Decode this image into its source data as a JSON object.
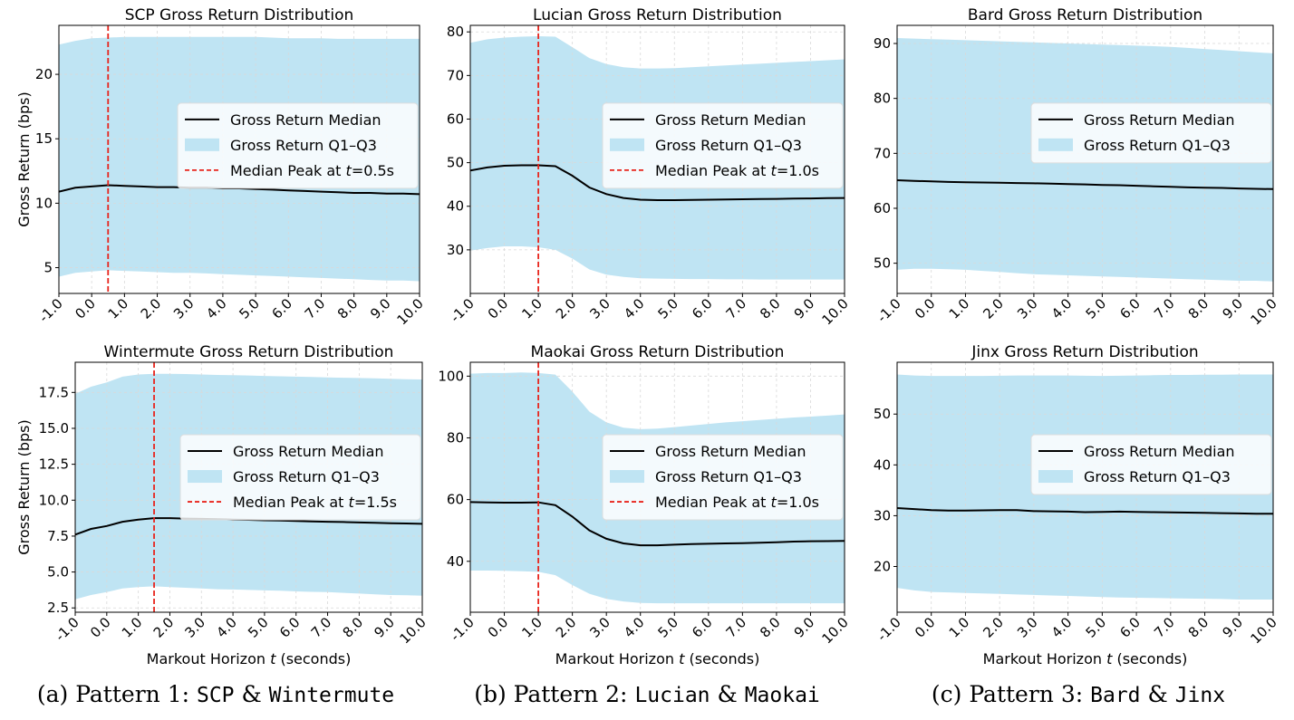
{
  "chart_data": [
    {
      "type": "line",
      "title": "SCP Gross Return Distribution",
      "xlabel": "",
      "ylabel": "Gross Return (bps)",
      "x": [
        -1.0,
        -0.5,
        0.0,
        0.5,
        1.0,
        1.5,
        2.0,
        2.5,
        3.0,
        3.5,
        4.0,
        4.5,
        5.0,
        5.5,
        6.0,
        6.5,
        7.0,
        7.5,
        8.0,
        8.5,
        9.0,
        9.5,
        10.0
      ],
      "xticks": [
        "-1.0",
        "0.0",
        "1.0",
        "2.0",
        "3.0",
        "4.0",
        "5.0",
        "6.0",
        "7.0",
        "8.0",
        "9.0",
        "10.0"
      ],
      "yticks": [
        "5",
        "10",
        "15",
        "20"
      ],
      "xlim": [
        -1.0,
        10.0
      ],
      "ylim": [
        3.0,
        23.8
      ],
      "series": [
        {
          "name": "Gross Return Median",
          "kind": "line",
          "values": [
            10.9,
            11.2,
            11.3,
            11.4,
            11.35,
            11.3,
            11.25,
            11.25,
            11.2,
            11.2,
            11.15,
            11.15,
            11.1,
            11.05,
            11.0,
            10.95,
            10.9,
            10.85,
            10.8,
            10.8,
            10.75,
            10.75,
            10.7
          ]
        },
        {
          "name": "Gross Return Q1–Q3",
          "kind": "band",
          "lower": [
            4.3,
            4.6,
            4.7,
            4.8,
            4.75,
            4.7,
            4.65,
            4.6,
            4.6,
            4.55,
            4.5,
            4.45,
            4.4,
            4.35,
            4.3,
            4.25,
            4.2,
            4.15,
            4.1,
            4.05,
            4.0,
            4.0,
            3.95
          ],
          "upper": [
            22.3,
            22.6,
            22.8,
            22.85,
            22.9,
            22.9,
            22.9,
            22.9,
            22.9,
            22.9,
            22.9,
            22.9,
            22.9,
            22.85,
            22.8,
            22.8,
            22.8,
            22.75,
            22.75,
            22.75,
            22.75,
            22.75,
            22.75
          ]
        },
        {
          "name": "Median Peak at t=0.5s",
          "kind": "vline",
          "x": 0.5
        }
      ],
      "legend": {
        "placement": "center-right",
        "entries": [
          "Gross Return Median",
          "Gross Return Q1–Q3",
          "Median Peak at t=0.5s"
        ]
      },
      "grid": true
    },
    {
      "type": "line",
      "title": "Lucian Gross Return Distribution",
      "xlabel": "",
      "ylabel": "",
      "x": [
        -1.0,
        -0.5,
        0.0,
        0.5,
        1.0,
        1.5,
        2.0,
        2.5,
        3.0,
        3.5,
        4.0,
        4.5,
        5.0,
        5.5,
        6.0,
        6.5,
        7.0,
        7.5,
        8.0,
        8.5,
        9.0,
        9.5,
        10.0
      ],
      "xticks": [
        "-1.0",
        "0.0",
        "1.0",
        "2.0",
        "3.0",
        "4.0",
        "5.0",
        "6.0",
        "7.0",
        "8.0",
        "9.0",
        "10.0"
      ],
      "yticks": [
        "30",
        "40",
        "50",
        "60",
        "70",
        "80"
      ],
      "xlim": [
        -1.0,
        10.0
      ],
      "ylim": [
        20.0,
        81.5
      ],
      "series": [
        {
          "name": "Gross Return Median",
          "kind": "line",
          "values": [
            48.2,
            48.9,
            49.3,
            49.4,
            49.4,
            49.2,
            47.0,
            44.3,
            42.8,
            41.9,
            41.5,
            41.4,
            41.4,
            41.45,
            41.5,
            41.55,
            41.6,
            41.65,
            41.7,
            41.75,
            41.8,
            41.85,
            41.9
          ]
        },
        {
          "name": "Gross Return Q1–Q3",
          "kind": "band",
          "lower": [
            29.8,
            30.4,
            30.8,
            30.8,
            30.6,
            30.0,
            28.0,
            25.5,
            24.3,
            23.8,
            23.5,
            23.4,
            23.35,
            23.3,
            23.3,
            23.25,
            23.25,
            23.2,
            23.2,
            23.2,
            23.2,
            23.2,
            23.2
          ],
          "upper": [
            77.5,
            78.3,
            78.7,
            78.9,
            79.0,
            78.9,
            76.5,
            74.0,
            72.6,
            71.9,
            71.6,
            71.6,
            71.7,
            71.9,
            72.1,
            72.3,
            72.5,
            72.7,
            72.9,
            73.1,
            73.3,
            73.5,
            73.7
          ]
        },
        {
          "name": "Median Peak at t=1.0s",
          "kind": "vline",
          "x": 1.0
        }
      ],
      "legend": {
        "placement": "center-right",
        "entries": [
          "Gross Return Median",
          "Gross Return Q1–Q3",
          "Median Peak at t=1.0s"
        ]
      },
      "grid": true
    },
    {
      "type": "line",
      "title": "Bard Gross Return Distribution",
      "xlabel": "",
      "ylabel": "",
      "x": [
        -1.0,
        -0.5,
        0.0,
        0.5,
        1.0,
        1.5,
        2.0,
        2.5,
        3.0,
        3.5,
        4.0,
        4.5,
        5.0,
        5.5,
        6.0,
        6.5,
        7.0,
        7.5,
        8.0,
        8.5,
        9.0,
        9.5,
        10.0
      ],
      "xticks": [
        "-1.0",
        "0.0",
        "1.0",
        "2.0",
        "3.0",
        "4.0",
        "5.0",
        "6.0",
        "7.0",
        "8.0",
        "9.0",
        "10.0"
      ],
      "yticks": [
        "50",
        "60",
        "70",
        "80",
        "90"
      ],
      "xlim": [
        -1.0,
        10.0
      ],
      "ylim": [
        44.5,
        93.3
      ],
      "series": [
        {
          "name": "Gross Return Median",
          "kind": "line",
          "values": [
            65.1,
            65.0,
            64.9,
            64.8,
            64.75,
            64.7,
            64.65,
            64.6,
            64.55,
            64.5,
            64.4,
            64.35,
            64.25,
            64.2,
            64.1,
            64.0,
            63.9,
            63.8,
            63.75,
            63.7,
            63.6,
            63.55,
            63.5
          ]
        },
        {
          "name": "Gross Return Q1–Q3",
          "kind": "band",
          "lower": [
            48.8,
            49.0,
            49.0,
            48.9,
            48.8,
            48.6,
            48.4,
            48.2,
            48.0,
            47.9,
            47.8,
            47.7,
            47.6,
            47.5,
            47.4,
            47.3,
            47.2,
            47.1,
            47.0,
            46.9,
            46.8,
            46.8,
            46.7
          ]
        },
        {
          "name": "Gross Return Q1–Q3 upper",
          "kind": "band-upper",
          "upper": [
            91.0,
            90.9,
            90.8,
            90.7,
            90.6,
            90.5,
            90.4,
            90.3,
            90.2,
            90.1,
            90.0,
            89.9,
            89.8,
            89.7,
            89.6,
            89.5,
            89.4,
            89.2,
            89.0,
            88.8,
            88.6,
            88.4,
            88.2
          ]
        }
      ],
      "legend": {
        "placement": "center-right",
        "entries": [
          "Gross Return Median",
          "Gross Return Q1–Q3"
        ]
      },
      "grid": true
    },
    {
      "type": "line",
      "title": "Wintermute Gross Return Distribution",
      "xlabel": "Markout Horizon t (seconds)",
      "ylabel": "Gross Return (bps)",
      "x": [
        -1.0,
        -0.5,
        0.0,
        0.5,
        1.0,
        1.5,
        2.0,
        2.5,
        3.0,
        3.5,
        4.0,
        4.5,
        5.0,
        5.5,
        6.0,
        6.5,
        7.0,
        7.5,
        8.0,
        8.5,
        9.0,
        9.5,
        10.0
      ],
      "xticks": [
        "-1.0",
        "0.0",
        "1.0",
        "2.0",
        "3.0",
        "4.0",
        "5.0",
        "6.0",
        "7.0",
        "8.0",
        "9.0",
        "10.0"
      ],
      "yticks": [
        "2.5",
        "5.0",
        "7.5",
        "10.0",
        "12.5",
        "15.0",
        "17.5"
      ],
      "xlim": [
        -1.0,
        10.0
      ],
      "ylim": [
        2.2,
        19.6
      ],
      "series": [
        {
          "name": "Gross Return Median",
          "kind": "line",
          "values": [
            7.6,
            8.0,
            8.2,
            8.5,
            8.65,
            8.75,
            8.75,
            8.72,
            8.7,
            8.68,
            8.65,
            8.63,
            8.6,
            8.58,
            8.55,
            8.52,
            8.5,
            8.48,
            8.45,
            8.43,
            8.4,
            8.38,
            8.35
          ]
        },
        {
          "name": "Gross Return Q1–Q3",
          "kind": "band",
          "lower": [
            3.1,
            3.4,
            3.6,
            3.85,
            3.95,
            4.0,
            3.95,
            3.9,
            3.85,
            3.8,
            3.78,
            3.75,
            3.72,
            3.7,
            3.65,
            3.62,
            3.6,
            3.55,
            3.5,
            3.45,
            3.4,
            3.38,
            3.35
          ],
          "upper": [
            17.4,
            17.9,
            18.2,
            18.6,
            18.75,
            18.8,
            18.8,
            18.78,
            18.75,
            18.72,
            18.7,
            18.68,
            18.65,
            18.62,
            18.6,
            18.58,
            18.55,
            18.52,
            18.5,
            18.48,
            18.45,
            18.42,
            18.4
          ]
        },
        {
          "name": "Median Peak at t=1.5s",
          "kind": "vline",
          "x": 1.5
        }
      ],
      "legend": {
        "placement": "center-right",
        "entries": [
          "Gross Return Median",
          "Gross Return Q1–Q3",
          "Median Peak at t=1.5s"
        ]
      },
      "grid": true
    },
    {
      "type": "line",
      "title": "Maokai Gross Return Distribution",
      "xlabel": "Markout Horizon t (seconds)",
      "ylabel": "",
      "x": [
        -1.0,
        -0.5,
        0.0,
        0.5,
        1.0,
        1.5,
        2.0,
        2.5,
        3.0,
        3.5,
        4.0,
        4.5,
        5.0,
        5.5,
        6.0,
        6.5,
        7.0,
        7.5,
        8.0,
        8.5,
        9.0,
        9.5,
        10.0
      ],
      "xticks": [
        "-1.0",
        "0.0",
        "1.0",
        "2.0",
        "3.0",
        "4.0",
        "5.0",
        "6.0",
        "7.0",
        "8.0",
        "9.0",
        "10.0"
      ],
      "yticks": [
        "40",
        "60",
        "80",
        "100"
      ],
      "xlim": [
        -1.0,
        10.0
      ],
      "ylim": [
        23.5,
        104.5
      ],
      "series": [
        {
          "name": "Gross Return Median",
          "kind": "line",
          "values": [
            59.2,
            59.1,
            59.0,
            59.0,
            59.1,
            58.2,
            54.5,
            50.0,
            47.3,
            45.8,
            45.2,
            45.2,
            45.4,
            45.6,
            45.7,
            45.8,
            45.9,
            46.0,
            46.2,
            46.4,
            46.5,
            46.55,
            46.6
          ]
        },
        {
          "name": "Gross Return Q1–Q3",
          "kind": "band",
          "lower": [
            37.0,
            37.0,
            36.9,
            36.8,
            36.6,
            35.5,
            32.3,
            29.5,
            27.8,
            27.0,
            26.5,
            26.4,
            26.4,
            26.4,
            26.4,
            26.4,
            26.4,
            26.4,
            26.4,
            26.4,
            26.4,
            26.4,
            26.4
          ],
          "upper": [
            100.8,
            101.0,
            101.0,
            101.2,
            101.0,
            100.5,
            95.0,
            88.5,
            85.0,
            83.3,
            82.8,
            83.0,
            83.5,
            84.0,
            84.5,
            85.0,
            85.4,
            85.8,
            86.2,
            86.6,
            86.9,
            87.2,
            87.6
          ]
        },
        {
          "name": "Median Peak at t=1.0s",
          "kind": "vline",
          "x": 1.0
        }
      ],
      "legend": {
        "placement": "center-right",
        "entries": [
          "Gross Return Median",
          "Gross Return Q1–Q3",
          "Median Peak at t=1.0s"
        ]
      },
      "grid": true
    },
    {
      "type": "line",
      "title": "Jinx Gross Return Distribution",
      "xlabel": "Markout Horizon t (seconds)",
      "ylabel": "",
      "x": [
        -1.0,
        -0.5,
        0.0,
        0.5,
        1.0,
        1.5,
        2.0,
        2.5,
        3.0,
        3.5,
        4.0,
        4.5,
        5.0,
        5.5,
        6.0,
        6.5,
        7.0,
        7.5,
        8.0,
        8.5,
        9.0,
        9.5,
        10.0
      ],
      "xticks": [
        "-1.0",
        "0.0",
        "1.0",
        "2.0",
        "3.0",
        "4.0",
        "5.0",
        "6.0",
        "7.0",
        "8.0",
        "9.0",
        "10.0"
      ],
      "yticks": [
        "20",
        "30",
        "40",
        "50"
      ],
      "xlim": [
        -1.0,
        10.0
      ],
      "ylim": [
        11.0,
        60.2
      ],
      "series": [
        {
          "name": "Gross Return Median",
          "kind": "line",
          "values": [
            31.5,
            31.3,
            31.1,
            31.0,
            31.0,
            31.05,
            31.1,
            31.1,
            30.9,
            30.85,
            30.8,
            30.7,
            30.75,
            30.8,
            30.75,
            30.7,
            30.65,
            30.6,
            30.55,
            30.5,
            30.45,
            30.4,
            30.4
          ]
        },
        {
          "name": "Gross Return Q1–Q3",
          "kind": "band",
          "lower": [
            15.8,
            15.3,
            15.0,
            14.9,
            14.8,
            14.7,
            14.6,
            14.5,
            14.4,
            14.3,
            14.2,
            14.1,
            14.0,
            13.9,
            13.85,
            13.8,
            13.75,
            13.7,
            13.65,
            13.6,
            13.5,
            13.5,
            13.5
          ],
          "upper": [
            57.8,
            57.6,
            57.5,
            57.5,
            57.5,
            57.5,
            57.55,
            57.6,
            57.6,
            57.6,
            57.6,
            57.55,
            57.5,
            57.55,
            57.6,
            57.65,
            57.7,
            57.7,
            57.75,
            57.75,
            57.8,
            57.8,
            57.8
          ]
        }
      ],
      "legend": {
        "placement": "center-right",
        "entries": [
          "Gross Return Median",
          "Gross Return Q1–Q3"
        ]
      },
      "grid": true
    }
  ],
  "captions": [
    {
      "prefix": "(a) Pattern 1: ",
      "a": "SCP",
      "sep": " & ",
      "b": "Wintermute"
    },
    {
      "prefix": "(b) Pattern 2: ",
      "a": "Lucian",
      "sep": " & ",
      "b": "Maokai"
    },
    {
      "prefix": "(c) Pattern 3: ",
      "a": "Bard",
      "sep": " & ",
      "b": "Jinx"
    }
  ],
  "colors": {
    "median": "#000000",
    "band": "#bfe4f3",
    "vline": "#e8241c",
    "grid": "#d9d9d9"
  }
}
